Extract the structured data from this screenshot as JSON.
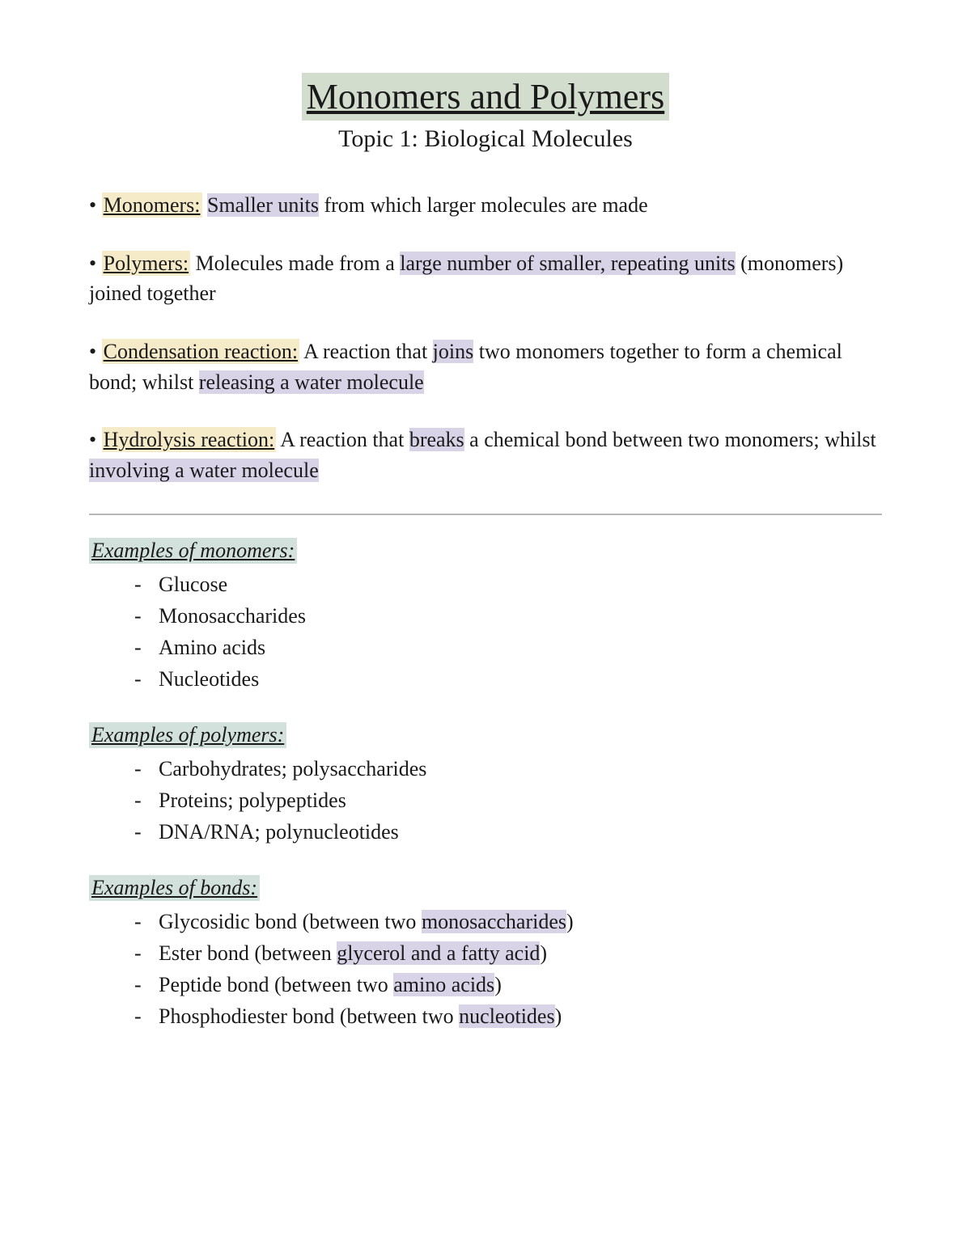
{
  "colors": {
    "hl_green": "#d2ddce",
    "hl_yellow": "#f6ebc8",
    "hl_purple": "#d9d3e8",
    "hl_teal": "#d3e1dd",
    "text": "#1a1a1a",
    "rule": "#b8b8b8",
    "background": "#ffffff"
  },
  "title": "Monomers and Polymers",
  "subtitle": "Topic 1: Biological Molecules",
  "definitions": [
    {
      "bullet": "• ",
      "term": "Monomers:",
      "segments": [
        {
          "text": " ",
          "hl": null
        },
        {
          "text": "Smaller units",
          "hl": "purple"
        },
        {
          "text": " from which larger molecules are made",
          "hl": null
        }
      ]
    },
    {
      "bullet": "• ",
      "term": "Polymers:",
      "segments": [
        {
          "text": " Molecules made from a ",
          "hl": null
        },
        {
          "text": "large number of smaller, repeating units",
          "hl": "purple"
        },
        {
          "text": " (monomers) joined together",
          "hl": null
        }
      ]
    },
    {
      "bullet": "• ",
      "term": "Condensation reaction:",
      "segments": [
        {
          "text": "  A reaction that ",
          "hl": null
        },
        {
          "text": "joins",
          "hl": "purple"
        },
        {
          "text": " two monomers together to form a chemical bond; whilst ",
          "hl": null
        },
        {
          "text": "releasing a water molecule",
          "hl": "purple"
        }
      ]
    },
    {
      "bullet": "• ",
      "term": "Hydrolysis reaction:",
      "segments": [
        {
          "text": " A reaction that ",
          "hl": null
        },
        {
          "text": "breaks",
          "hl": "purple"
        },
        {
          "text": " a chemical bond between two monomers; whilst ",
          "hl": null
        },
        {
          "text": "involving a water molecule",
          "hl": "purple"
        }
      ]
    }
  ],
  "sections": [
    {
      "heading": "Examples of monomers:",
      "items": [
        [
          {
            "text": "Glucose",
            "hl": null
          }
        ],
        [
          {
            "text": "Monosaccharides",
            "hl": null
          }
        ],
        [
          {
            "text": "Amino acids",
            "hl": null
          }
        ],
        [
          {
            "text": "Nucleotides",
            "hl": null
          }
        ]
      ]
    },
    {
      "heading": "Examples of polymers:",
      "items": [
        [
          {
            "text": "Carbohydrates; polysaccharides",
            "hl": null
          }
        ],
        [
          {
            "text": "Proteins; polypeptides",
            "hl": null
          }
        ],
        [
          {
            "text": "DNA/RNA; polynucleotides",
            "hl": null
          }
        ]
      ]
    },
    {
      "heading": "Examples of bonds:",
      "items": [
        [
          {
            "text": "Glycosidic bond (between two ",
            "hl": null
          },
          {
            "text": "monosaccharides",
            "hl": "purple"
          },
          {
            "text": ")",
            "hl": null
          }
        ],
        [
          {
            "text": "Ester bond (between ",
            "hl": null
          },
          {
            "text": "glycerol and a fatty acid",
            "hl": "purple"
          },
          {
            "text": ")",
            "hl": null
          }
        ],
        [
          {
            "text": "Peptide bond (between two ",
            "hl": null
          },
          {
            "text": "amino acids",
            "hl": "purple"
          },
          {
            "text": ")",
            "hl": null
          }
        ],
        [
          {
            "text": "Phosphodiester bond (between two ",
            "hl": null
          },
          {
            "text": "nucleotides",
            "hl": "purple"
          },
          {
            "text": ")",
            "hl": null
          }
        ]
      ]
    }
  ]
}
